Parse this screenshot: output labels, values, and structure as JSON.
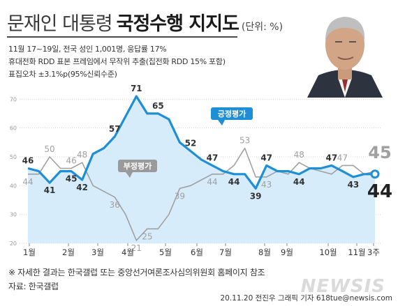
{
  "header": {
    "title_regular": "문재인 대통령",
    "title_bold": "국정수행 지지도",
    "unit": "(단위: %)"
  },
  "survey": {
    "line1": "11월 17~19일, 전국 성인 1,001명, 응답률 17%",
    "line2": "휴대전화 RDD 표본 프레임에서 무작위 추출(집전화 RDD 15% 포함)",
    "line3": "표집오차 ±3.1%p(95%신뢰수준)"
  },
  "footer": {
    "note": "※ 자세한 결과는 한국갤럽 또는 중앙선거여론조사심의위원회 홈페이지 참조",
    "source": "자료: 한국갤럽",
    "credit": "20.11.20 전진우 그래픽 기자 618tue@newsis.com",
    "watermark": "NEWSIS"
  },
  "colors": {
    "positive": "#1e8fd6",
    "positive_fill": "#d6ecfa",
    "negative": "#a0a0a0",
    "negative_box": "#9a9a9a",
    "grid": "#d4d4d4"
  },
  "chart_data": {
    "type": "line",
    "y_ticks": [
      "20",
      "30",
      "40",
      "50",
      "60",
      "70"
    ],
    "ylim": [
      20,
      72
    ],
    "months": [
      "1월",
      "2월",
      "3월",
      "4월",
      "5월",
      "6월",
      "7월",
      "8월",
      "9월",
      "10월",
      "11월",
      "3주"
    ],
    "series": [
      {
        "name": "긍정평가",
        "values": [
          46,
          45,
          41,
          45,
          45,
          42,
          51,
          53,
          57,
          64,
          71,
          65,
          65,
          63,
          55,
          52,
          49,
          47,
          45,
          44,
          44,
          39,
          47,
          45,
          45,
          44,
          46,
          46,
          47,
          45,
          43,
          44,
          44
        ]
      },
      {
        "name": "부정평가",
        "values": [
          44,
          44,
          50,
          46,
          46,
          48,
          40,
          38,
          36,
          30,
          21,
          25,
          25,
          30,
          39,
          40,
          42,
          44,
          44,
          47,
          53,
          43,
          43,
          45,
          44,
          48,
          46,
          45,
          44,
          47,
          47,
          44,
          45
        ]
      }
    ],
    "point_labels": {
      "positive": [
        {
          "i": 0,
          "v": "46"
        },
        {
          "i": 2,
          "v": "41"
        },
        {
          "i": 4,
          "v": "45"
        },
        {
          "i": 5,
          "v": "42"
        },
        {
          "i": 8,
          "v": "57"
        },
        {
          "i": 10,
          "v": "71"
        },
        {
          "i": 12,
          "v": "65"
        },
        {
          "i": 15,
          "v": "52"
        },
        {
          "i": 17,
          "v": "47"
        },
        {
          "i": 19,
          "v": "44"
        },
        {
          "i": 21,
          "v": "39"
        },
        {
          "i": 22,
          "v": "47"
        },
        {
          "i": 25,
          "v": "44"
        },
        {
          "i": 28,
          "v": "47"
        },
        {
          "i": 30,
          "v": "43"
        }
      ],
      "negative": [
        {
          "i": 0,
          "v": "44"
        },
        {
          "i": 2,
          "v": "50"
        },
        {
          "i": 4,
          "v": "46"
        },
        {
          "i": 5,
          "v": "48"
        },
        {
          "i": 8,
          "v": "36"
        },
        {
          "i": 10,
          "v": "21"
        },
        {
          "i": 11,
          "v": "25"
        },
        {
          "i": 14,
          "v": "39"
        },
        {
          "i": 17,
          "v": "44"
        },
        {
          "i": 20,
          "v": "53"
        },
        {
          "i": 22,
          "v": "43"
        },
        {
          "i": 25,
          "v": "48"
        },
        {
          "i": 29,
          "v": "47"
        }
      ]
    },
    "final": {
      "positive": "44",
      "negative": "45"
    }
  }
}
